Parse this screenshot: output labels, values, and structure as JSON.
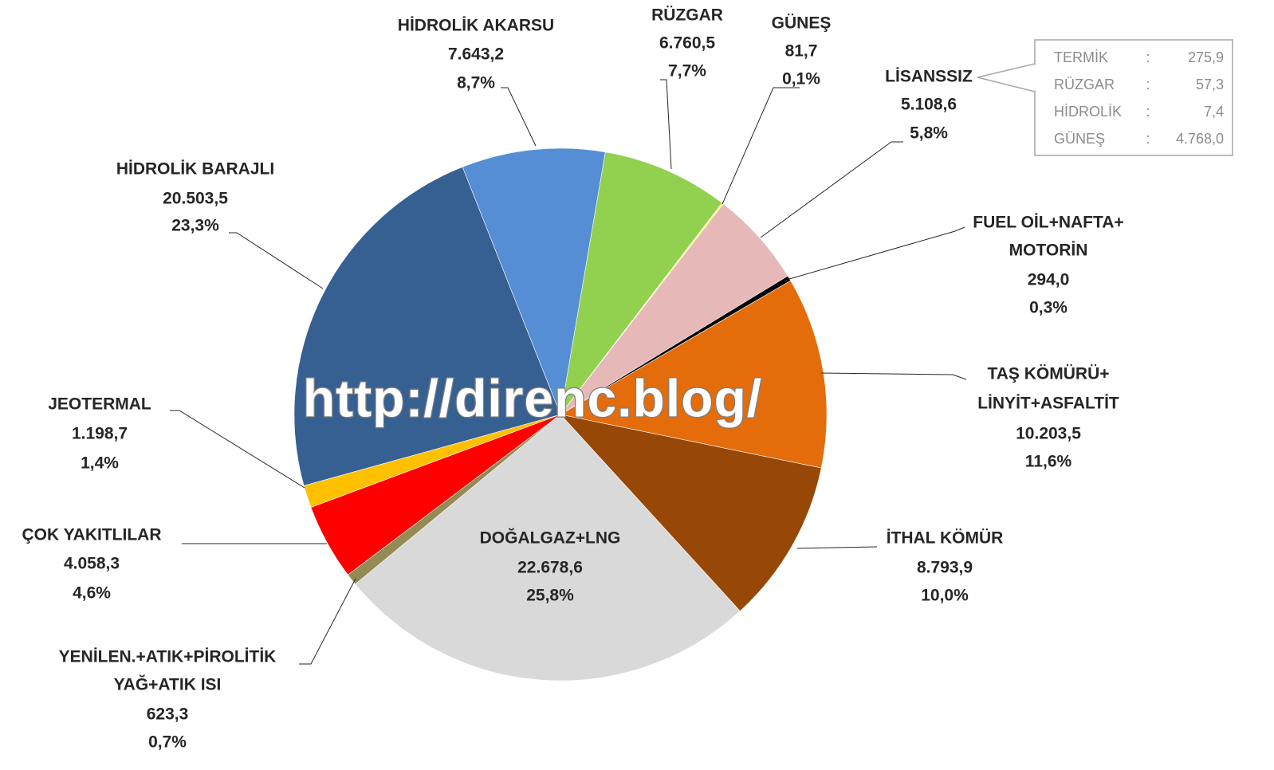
{
  "chart_data": {
    "type": "pie",
    "categories": [
      [
        "RÜZGAR"
      ],
      [
        "GÜNEŞ"
      ],
      [
        "LİSANSSIZ"
      ],
      [
        "FUEL OİL+NAFTA+",
        "MOTORİN"
      ],
      [
        "TAŞ KÖMÜRÜ+",
        "LİNYİT+ASFALTİT"
      ],
      [
        "İTHAL KÖMÜR"
      ],
      [
        "DOĞALGAZ+LNG"
      ],
      [
        "YENİLEN.+ATIK+PİROLİTİK",
        "YAĞ+ATIK ISI"
      ],
      [
        "ÇOK YAKITLILAR"
      ],
      [
        "JEOTERMAL"
      ],
      [
        "HİDROLİK BARAJLI"
      ],
      [
        "HİDROLİK AKARSU"
      ]
    ],
    "values": [
      6760.5,
      81.7,
      5108.6,
      294.0,
      10203.5,
      8793.9,
      22678.6,
      623.3,
      4058.3,
      1198.7,
      20503.5,
      7643.2
    ],
    "value_labels": [
      "6.760,5",
      "81,7",
      "5.108,6",
      "294,0",
      "10.203,5",
      "8.793,9",
      "22.678,6",
      "623,3",
      "4.058,3",
      "1.198,7",
      "20.503,5",
      "7.643,2"
    ],
    "percent_labels": [
      "7,7%",
      "0,1%",
      "5,8%",
      "0,3%",
      "11,6%",
      "10,0%",
      "25,8%",
      "0,7%",
      "4,6%",
      "1,4%",
      "23,3%",
      "8,7%"
    ],
    "colors": [
      "#92d050",
      "#ffff66",
      "#e6b9b8",
      "#000000",
      "#e46c0a",
      "#974706",
      "#d9d9d9",
      "#948a54",
      "#ff0000",
      "#ffc000",
      "#376092",
      "#558ed5"
    ],
    "inset": {
      "separator": ":",
      "rows": [
        {
          "name": "TERMİK",
          "value_label": "275,9"
        },
        {
          "name": "RÜZGAR",
          "value_label": "57,3"
        },
        {
          "name": "HİDROLİK",
          "value_label": "7,4"
        },
        {
          "name": "GÜNEŞ",
          "value_label": "4.768,0"
        }
      ]
    },
    "watermark": "http://direnc.blog/"
  }
}
